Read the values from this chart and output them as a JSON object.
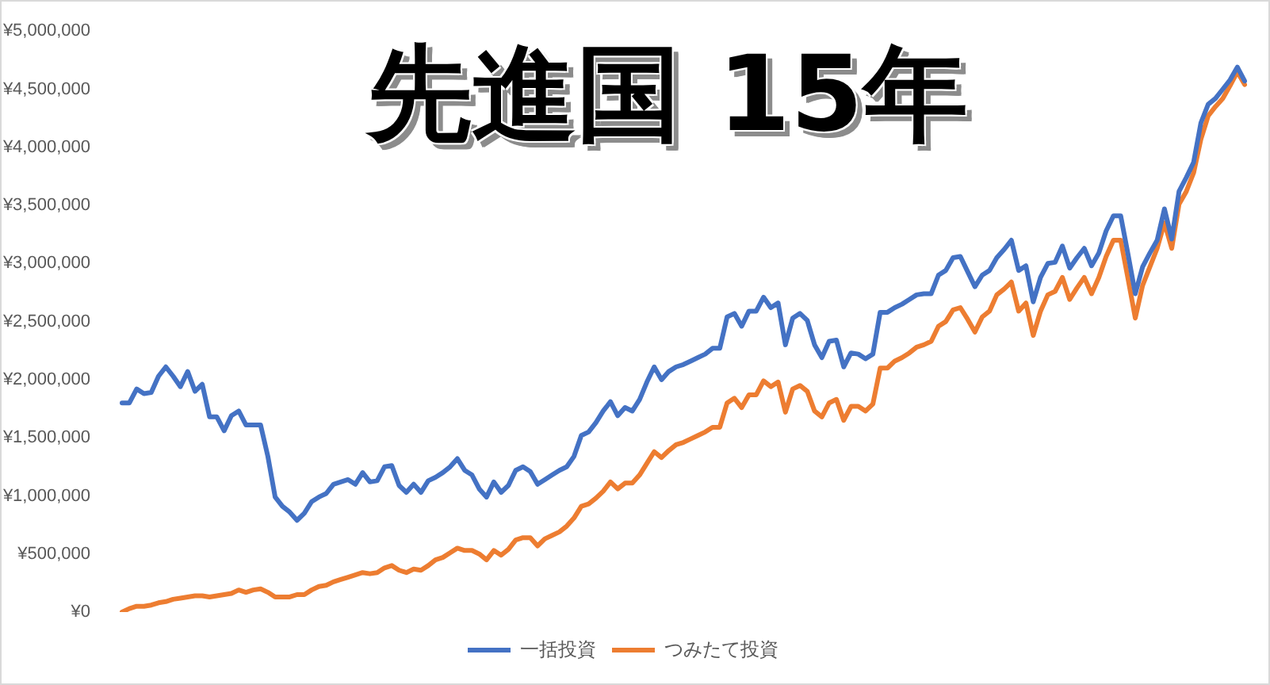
{
  "chart_data": {
    "type": "line",
    "title": "先進国 15年",
    "categories": [
      null,
      null,
      null,
      null,
      null,
      null,
      null,
      null,
      null,
      null,
      null,
      null,
      null,
      null,
      null,
      null,
      null,
      null,
      null,
      null,
      null,
      null,
      null,
      null,
      null,
      null,
      null,
      null,
      null,
      null,
      null,
      null,
      null,
      null,
      null,
      null,
      null,
      null,
      null,
      null,
      null,
      null,
      null,
      null,
      null,
      null,
      null,
      null,
      null,
      null,
      null,
      null,
      null,
      null,
      null,
      null,
      null,
      null,
      null,
      null,
      null,
      null,
      null,
      null,
      null,
      null,
      null,
      null,
      null,
      null,
      null,
      null,
      null,
      null,
      null,
      null,
      null,
      null,
      null,
      null,
      null,
      null,
      null,
      null,
      null,
      null,
      null,
      null,
      null,
      null,
      null,
      null,
      null,
      null,
      null,
      null,
      null,
      null,
      null,
      null,
      null,
      null,
      null,
      null,
      null,
      null,
      null,
      null,
      null,
      null,
      null,
      null,
      null,
      null,
      null,
      null,
      null,
      null,
      null,
      null,
      null,
      null,
      null,
      null,
      null,
      null,
      null,
      null,
      null,
      null,
      null,
      null,
      null,
      null,
      null,
      null,
      null,
      null,
      null,
      null,
      null,
      null,
      null,
      null,
      null,
      null,
      null,
      null,
      null,
      null,
      null,
      null,
      null,
      null,
      null
    ],
    "series": [
      {
        "name": "一括投資",
        "color": "#4472c4",
        "values": [
          1800000,
          1800000,
          1920000,
          1880000,
          1890000,
          2030000,
          2110000,
          2030000,
          1940000,
          2070000,
          1900000,
          1960000,
          1680000,
          1680000,
          1560000,
          1690000,
          1730000,
          1610000,
          1610000,
          1610000,
          1340000,
          990000,
          910000,
          860000,
          790000,
          850000,
          950000,
          990000,
          1020000,
          1100000,
          1120000,
          1140000,
          1100000,
          1200000,
          1120000,
          1130000,
          1250000,
          1260000,
          1090000,
          1030000,
          1100000,
          1030000,
          1130000,
          1160000,
          1200000,
          1250000,
          1320000,
          1220000,
          1180000,
          1060000,
          990000,
          1120000,
          1030000,
          1090000,
          1220000,
          1250000,
          1210000,
          1100000,
          1140000,
          1180000,
          1220000,
          1250000,
          1340000,
          1520000,
          1550000,
          1630000,
          1730000,
          1810000,
          1690000,
          1760000,
          1730000,
          1830000,
          1980000,
          2110000,
          2000000,
          2070000,
          2110000,
          2130000,
          2160000,
          2190000,
          2220000,
          2270000,
          2270000,
          2540000,
          2570000,
          2460000,
          2590000,
          2590000,
          2710000,
          2620000,
          2660000,
          2300000,
          2530000,
          2570000,
          2510000,
          2300000,
          2190000,
          2330000,
          2340000,
          2110000,
          2230000,
          2220000,
          2180000,
          2220000,
          2580000,
          2580000,
          2620000,
          2650000,
          2690000,
          2730000,
          2740000,
          2740000,
          2900000,
          2940000,
          3050000,
          3060000,
          2930000,
          2800000,
          2900000,
          2940000,
          3050000,
          3120000,
          3200000,
          2940000,
          2980000,
          2670000,
          2880000,
          3000000,
          3010000,
          3150000,
          2960000,
          3050000,
          3130000,
          2980000,
          3090000,
          3280000,
          3410000,
          3410000,
          3080000,
          2740000,
          2970000,
          3090000,
          3200000,
          3470000,
          3210000,
          3620000,
          3740000,
          3870000,
          4210000,
          4370000,
          4420000,
          4500000,
          4580000,
          4690000,
          4570000
        ]
      },
      {
        "name": "つみたて投資",
        "color": "#ed7d31",
        "values": [
          0,
          30000,
          50000,
          50000,
          60000,
          80000,
          90000,
          110000,
          120000,
          130000,
          140000,
          140000,
          130000,
          140000,
          150000,
          160000,
          190000,
          170000,
          190000,
          200000,
          170000,
          130000,
          130000,
          130000,
          150000,
          150000,
          190000,
          220000,
          230000,
          260000,
          280000,
          300000,
          320000,
          340000,
          330000,
          340000,
          380000,
          400000,
          360000,
          340000,
          370000,
          360000,
          400000,
          450000,
          470000,
          510000,
          550000,
          530000,
          530000,
          500000,
          450000,
          530000,
          490000,
          540000,
          620000,
          640000,
          640000,
          570000,
          630000,
          660000,
          690000,
          740000,
          810000,
          910000,
          930000,
          980000,
          1040000,
          1120000,
          1060000,
          1110000,
          1110000,
          1180000,
          1280000,
          1380000,
          1330000,
          1390000,
          1440000,
          1460000,
          1490000,
          1520000,
          1550000,
          1590000,
          1590000,
          1800000,
          1840000,
          1760000,
          1870000,
          1870000,
          1990000,
          1940000,
          1980000,
          1720000,
          1920000,
          1950000,
          1900000,
          1730000,
          1680000,
          1800000,
          1830000,
          1650000,
          1770000,
          1770000,
          1730000,
          1790000,
          2100000,
          2100000,
          2160000,
          2190000,
          2230000,
          2280000,
          2300000,
          2330000,
          2460000,
          2500000,
          2600000,
          2620000,
          2520000,
          2410000,
          2540000,
          2590000,
          2730000,
          2780000,
          2840000,
          2590000,
          2660000,
          2380000,
          2590000,
          2730000,
          2760000,
          2880000,
          2690000,
          2790000,
          2880000,
          2740000,
          2880000,
          3060000,
          3200000,
          3200000,
          2870000,
          2530000,
          2810000,
          2970000,
          3130000,
          3350000,
          3130000,
          3510000,
          3620000,
          3780000,
          4070000,
          4270000,
          4350000,
          4420000,
          4530000,
          4650000,
          4540000
        ]
      }
    ],
    "ylim": [
      0,
      5000000
    ],
    "yticks": [
      {
        "value": 0,
        "label": "¥0"
      },
      {
        "value": 500000,
        "label": "¥500,000"
      },
      {
        "value": 1000000,
        "label": "¥1,000,000"
      },
      {
        "value": 1500000,
        "label": "¥1,500,000"
      },
      {
        "value": 2000000,
        "label": "¥2,000,000"
      },
      {
        "value": 2500000,
        "label": "¥2,500,000"
      },
      {
        "value": 3000000,
        "label": "¥3,000,000"
      },
      {
        "value": 3500000,
        "label": "¥3,500,000"
      },
      {
        "value": 4000000,
        "label": "¥4,000,000"
      },
      {
        "value": 4500000,
        "label": "¥4,500,000"
      },
      {
        "value": 5000000,
        "label": "¥5,000,000"
      }
    ],
    "grid": false,
    "legend": "bottom"
  }
}
